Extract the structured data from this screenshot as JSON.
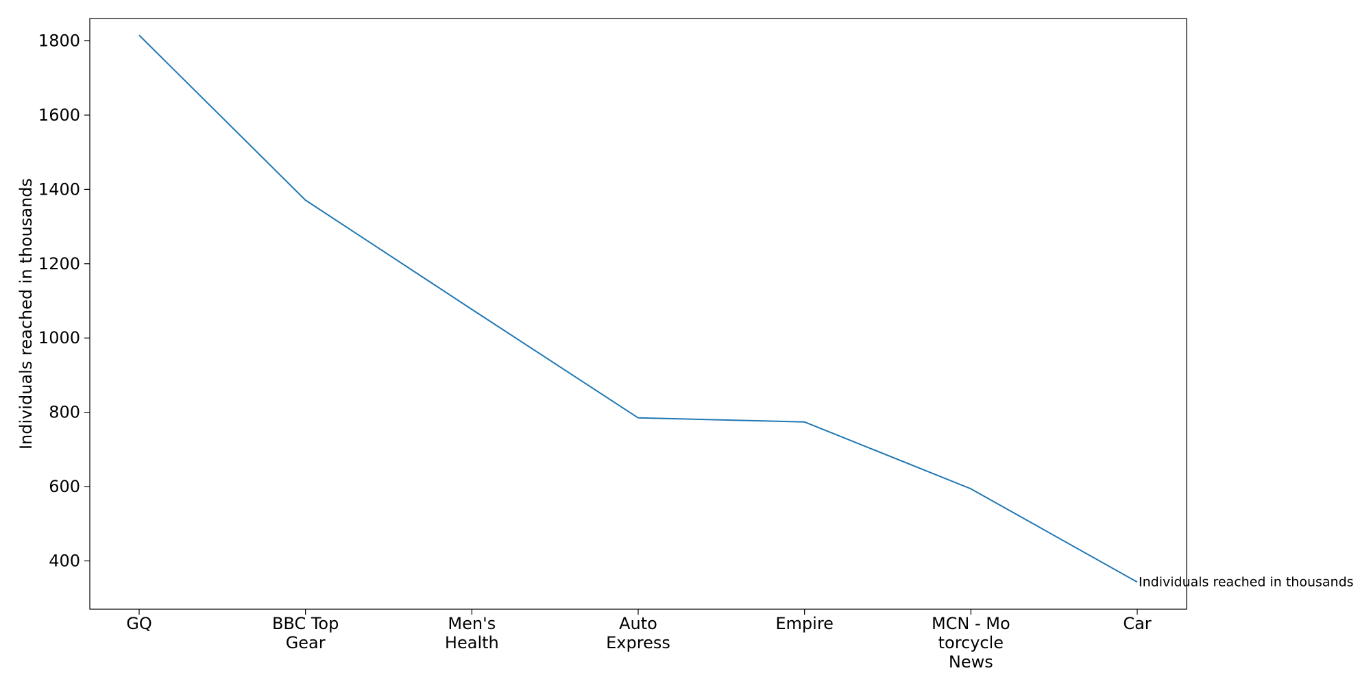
{
  "chart_data": {
    "type": "line",
    "categories": [
      "GQ",
      "BBC Top Gear",
      "Men's Health",
      "Auto Express",
      "Empire",
      "MCN - Motorcycle News",
      "Car"
    ],
    "category_tick_labels": [
      [
        "GQ"
      ],
      [
        "BBC Top",
        "Gear"
      ],
      [
        "Men's",
        "Health"
      ],
      [
        "Auto",
        "Express"
      ],
      [
        "Empire"
      ],
      [
        "MCN - Mo",
        "torcycle",
        "News"
      ],
      [
        "Car"
      ]
    ],
    "series": [
      {
        "name": "Individuals reached in thousands",
        "values": [
          1815,
          1371,
          1077,
          785,
          774,
          594,
          343
        ]
      }
    ],
    "title": "",
    "xlabel": "",
    "ylabel": "Individuals reached in thousands",
    "ylim": [
      270,
      1860
    ],
    "yticks": [
      400,
      600,
      800,
      1000,
      1200,
      1400,
      1600,
      1800
    ],
    "grid": false,
    "line_color": "#1f77b4",
    "series_label_placement": "end of line"
  }
}
